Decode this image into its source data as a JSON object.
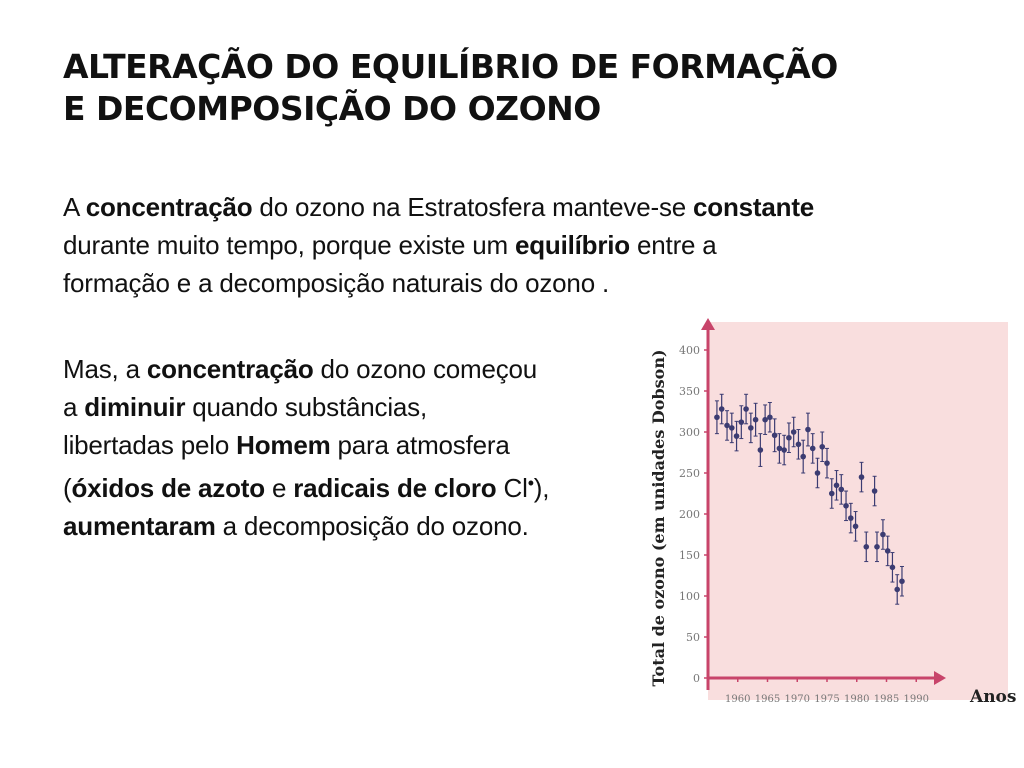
{
  "title": {
    "line1": "ALTERAÇÃO DO EQUILÍBRIO DE FORMAÇÃO",
    "line2": "E DECOMPOSIÇÃO DO OZONO"
  },
  "paragraph1": {
    "l1a": "A ",
    "l1b": "concentração",
    "l1c": " do ozono na Estratosfera manteve-se ",
    "l1d": "constante",
    "l2a": "durante muito tempo, porque existe um ",
    "l2b": "equilíbrio",
    "l2c": " entre a",
    "l3": "formação e a decomposição naturais do ozono ."
  },
  "paragraph2": {
    "l1a": "Mas, a ",
    "l1b": "concentração",
    "l1c": " do ozono começou",
    "l2a": "a ",
    "l2b": "diminuir",
    "l2c": " quando substâncias,",
    "l3a": "libertadas pelo ",
    "l3b": "Homem",
    "l3c": " para atmosfera",
    "l4a": "(",
    "l4b": "óxidos de azoto",
    "l4c": " e ",
    "l4d": "radicais de cloro",
    "l4e": " Cl",
    "l4f": "•",
    "l4g": "),",
    "l5a": "aumentaram",
    "l5b": " a decomposição do ozono."
  },
  "chart_data": {
    "type": "scatter",
    "ylabel": "Total de ozono (em unidades Dobson)",
    "xlabel": "Anos",
    "x_ticks": [
      1960,
      1965,
      1970,
      1975,
      1980,
      1985,
      1990
    ],
    "y_ticks": [
      0,
      50,
      100,
      150,
      200,
      250,
      300,
      350,
      400
    ],
    "xlim": [
      1955,
      1995
    ],
    "ylim": [
      0,
      420
    ],
    "grid": false,
    "colors": {
      "background": "#f9dede",
      "axis": "#c8446a",
      "points": "#3c3c72",
      "tick_text": "#777777"
    },
    "points": [
      {
        "x": 1956.5,
        "y": 318,
        "err": 20
      },
      {
        "x": 1957.3,
        "y": 328,
        "err": 18
      },
      {
        "x": 1958.2,
        "y": 308,
        "err": 18
      },
      {
        "x": 1959.0,
        "y": 305,
        "err": 18
      },
      {
        "x": 1959.8,
        "y": 295,
        "err": 18
      },
      {
        "x": 1960.6,
        "y": 312,
        "err": 20
      },
      {
        "x": 1961.4,
        "y": 328,
        "err": 18
      },
      {
        "x": 1962.2,
        "y": 305,
        "err": 18
      },
      {
        "x": 1963.0,
        "y": 315,
        "err": 20
      },
      {
        "x": 1963.8,
        "y": 278,
        "err": 20
      },
      {
        "x": 1964.6,
        "y": 315,
        "err": 18
      },
      {
        "x": 1965.4,
        "y": 318,
        "err": 18
      },
      {
        "x": 1966.2,
        "y": 296,
        "err": 20
      },
      {
        "x": 1967.0,
        "y": 280,
        "err": 18
      },
      {
        "x": 1967.8,
        "y": 278,
        "err": 18
      },
      {
        "x": 1968.6,
        "y": 293,
        "err": 18
      },
      {
        "x": 1969.4,
        "y": 300,
        "err": 18
      },
      {
        "x": 1970.2,
        "y": 285,
        "err": 18
      },
      {
        "x": 1971.0,
        "y": 270,
        "err": 20
      },
      {
        "x": 1971.8,
        "y": 303,
        "err": 20
      },
      {
        "x": 1972.6,
        "y": 280,
        "err": 18
      },
      {
        "x": 1973.4,
        "y": 250,
        "err": 18
      },
      {
        "x": 1974.2,
        "y": 282,
        "err": 18
      },
      {
        "x": 1975.0,
        "y": 262,
        "err": 18
      },
      {
        "x": 1975.8,
        "y": 225,
        "err": 18
      },
      {
        "x": 1976.6,
        "y": 235,
        "err": 18
      },
      {
        "x": 1977.4,
        "y": 230,
        "err": 18
      },
      {
        "x": 1978.2,
        "y": 210,
        "err": 18
      },
      {
        "x": 1979.0,
        "y": 195,
        "err": 18
      },
      {
        "x": 1979.8,
        "y": 185,
        "err": 18
      },
      {
        "x": 1980.8,
        "y": 245,
        "err": 18
      },
      {
        "x": 1981.6,
        "y": 160,
        "err": 18
      },
      {
        "x": 1983.0,
        "y": 228,
        "err": 18
      },
      {
        "x": 1983.4,
        "y": 160,
        "err": 18
      },
      {
        "x": 1984.4,
        "y": 175,
        "err": 18
      },
      {
        "x": 1985.2,
        "y": 155,
        "err": 18
      },
      {
        "x": 1986.0,
        "y": 135,
        "err": 18
      },
      {
        "x": 1986.8,
        "y": 108,
        "err": 18
      },
      {
        "x": 1987.6,
        "y": 118,
        "err": 18
      }
    ]
  }
}
